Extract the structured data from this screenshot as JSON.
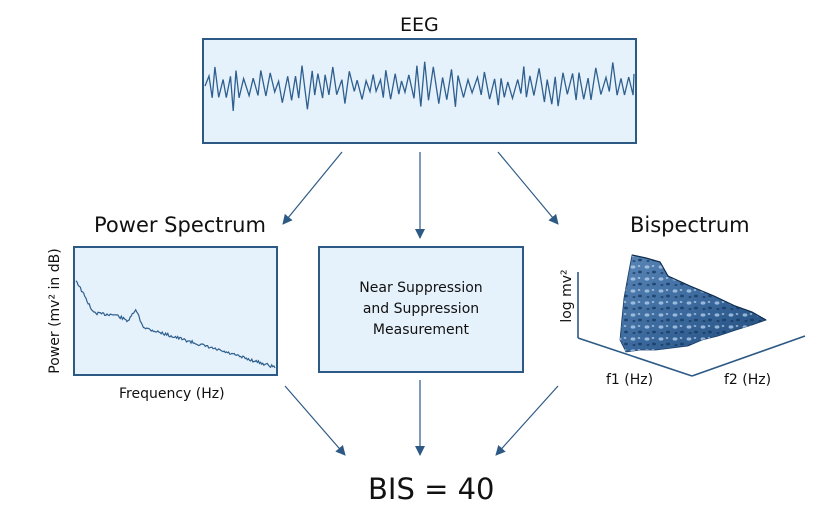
{
  "eeg": {
    "title": "EEG"
  },
  "power_spectrum": {
    "title": "Power Spectrum",
    "y_axis_label": "Power (mv² in dB)",
    "x_axis_label": "Frequency (Hz)"
  },
  "near_suppression": {
    "line1": "Near Suppression",
    "line2": "and Suppression",
    "line3": "Measurement"
  },
  "bispectrum": {
    "title": "Bispectrum",
    "z_axis_label": "log mv²",
    "x_axis_label": "f1 (Hz)",
    "y_axis_label": "f2 (Hz)"
  },
  "result": {
    "text": "BIS = 40"
  },
  "colors": {
    "accent": "#2d5a85",
    "box_fill": "#e6f2fb",
    "trace": "#2f5f8f"
  }
}
